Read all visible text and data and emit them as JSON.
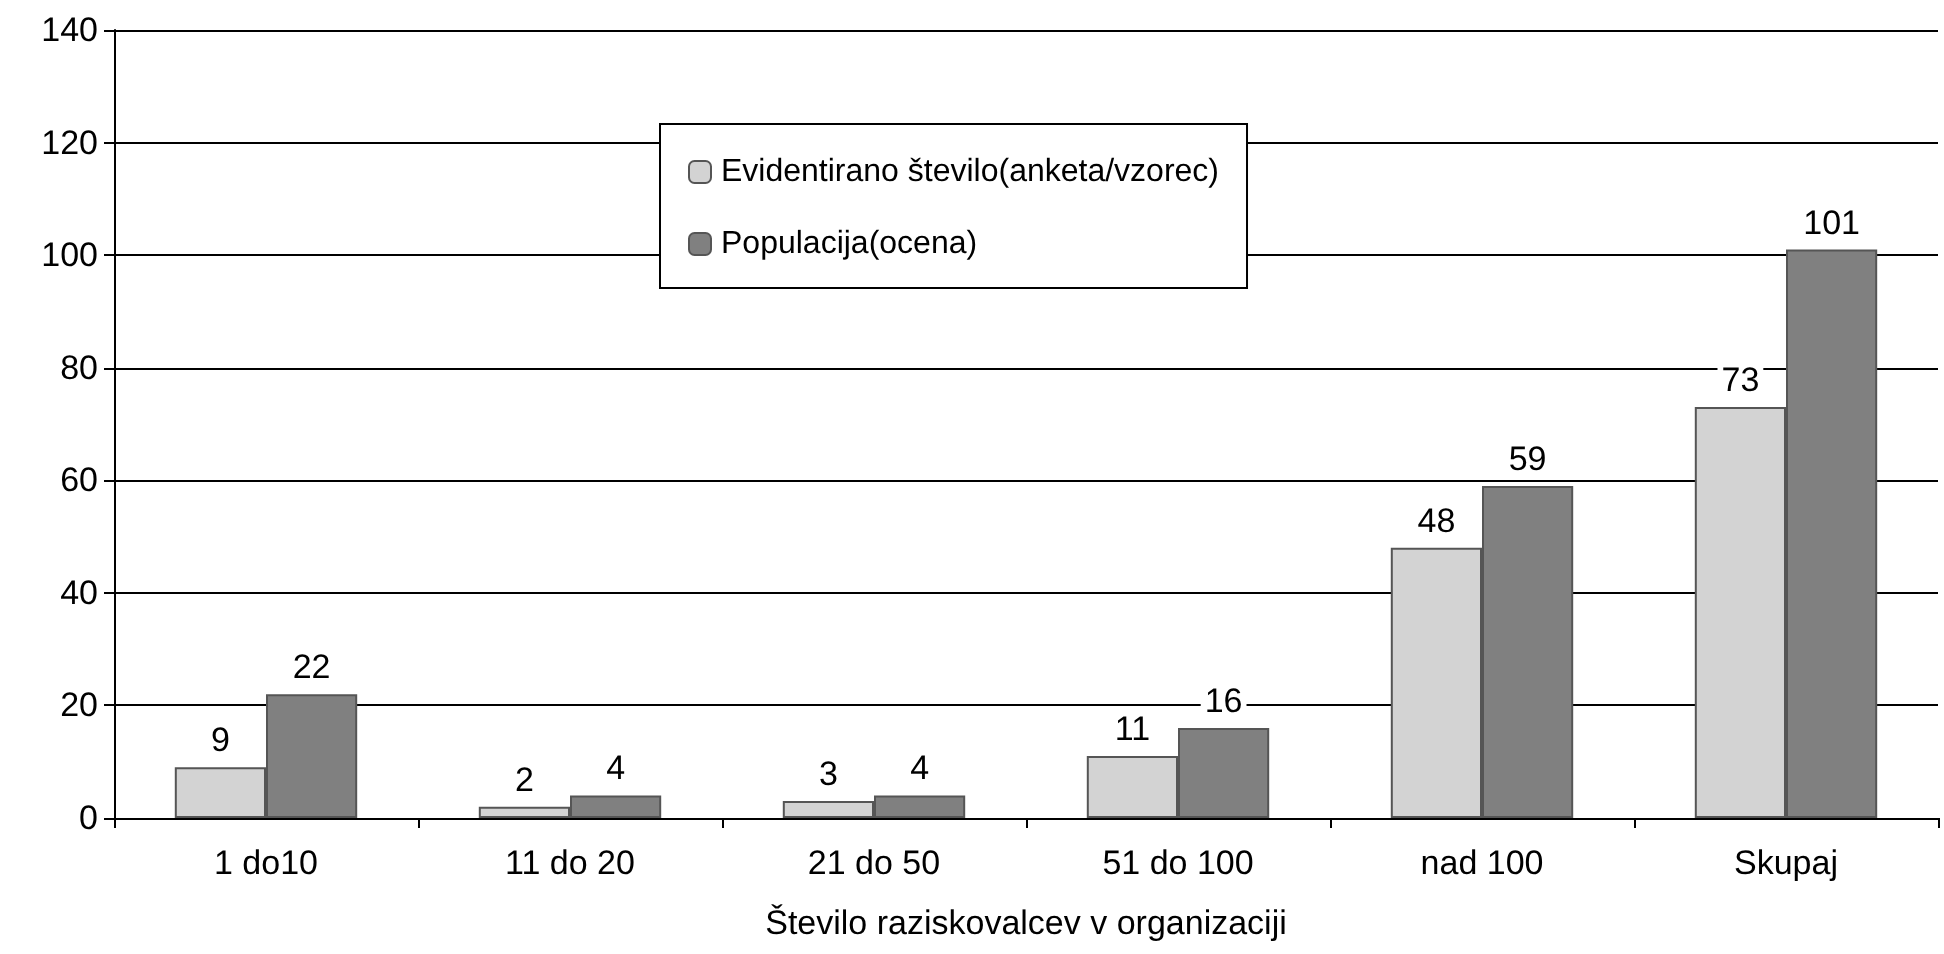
{
  "chart_data": {
    "type": "bar",
    "xlabel": "Število raziskovalcev v organizaciji",
    "categories": [
      "1 do10",
      "11 do 20",
      "21 do 50",
      "51 do 100",
      "nad 100",
      "Skupaj"
    ],
    "series": [
      {
        "name": "Evidentirano število(anketa/vzorec)",
        "color": "#d3d3d3",
        "values": [
          9,
          2,
          3,
          11,
          48,
          73
        ]
      },
      {
        "name": "Populacija(ocena)",
        "color": "#808080",
        "values": [
          22,
          4,
          4,
          16,
          59,
          101
        ]
      }
    ],
    "ylim": [
      0,
      140
    ],
    "yticks": [
      0,
      20,
      40,
      60,
      80,
      100,
      120,
      140
    ],
    "grid": "y",
    "legend": "top",
    "data_labels": true
  }
}
